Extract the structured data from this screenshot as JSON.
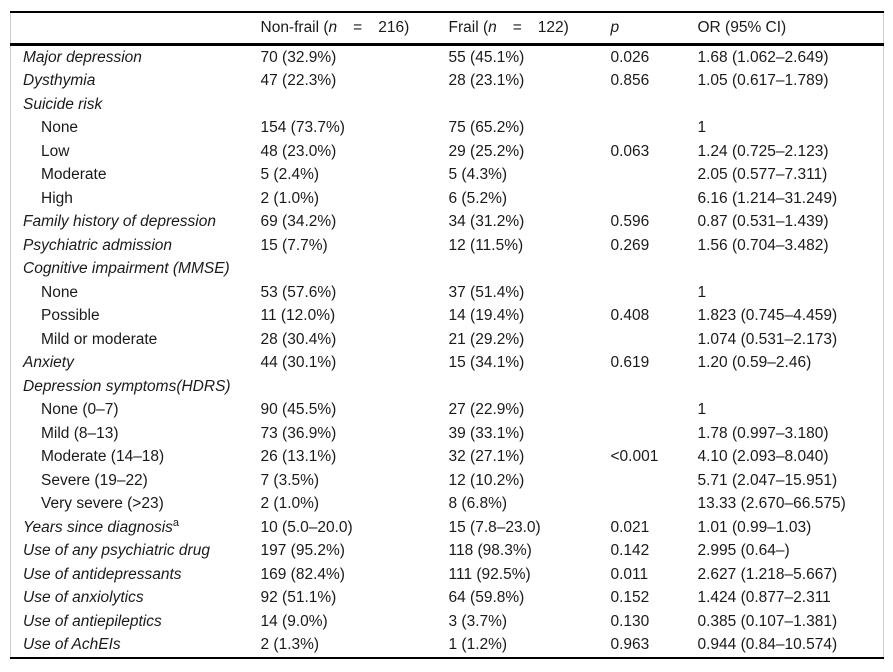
{
  "table": {
    "header": {
      "row_label": "",
      "nonfrail": {
        "pre": "Non-frail (",
        "n": "n",
        "eq": "=",
        "num": "216)"
      },
      "frail": {
        "pre": "Frail (",
        "n": "n",
        "eq": "=",
        "num": "122)"
      },
      "p": "p",
      "or": "OR (95% CI)"
    },
    "rows": [
      {
        "label": "Major depression",
        "italic": true,
        "nonfrail": "70 (32.9%)",
        "frail": "55 (45.1%)",
        "p": "0.026",
        "or": "1.68 (1.062–2.649)"
      },
      {
        "label": "Dysthymia",
        "italic": true,
        "nonfrail": "47 (22.3%)",
        "frail": "28 (23.1%)",
        "p": "0.856",
        "or": "1.05 (0.617–1.789)"
      },
      {
        "label": "Suicide risk",
        "italic": true,
        "nonfrail": "",
        "frail": "",
        "p": "",
        "or": ""
      },
      {
        "label": "None",
        "indent": true,
        "nonfrail": "154 (73.7%)",
        "frail": "75 (65.2%)",
        "p": "",
        "or": "1"
      },
      {
        "label": "Low",
        "indent": true,
        "nonfrail": "48 (23.0%)",
        "frail": "29 (25.2%)",
        "p": "0.063",
        "or": "1.24 (0.725–2.123)"
      },
      {
        "label": "Moderate",
        "indent": true,
        "nonfrail": "5 (2.4%)",
        "frail": "5 (4.3%)",
        "p": "",
        "or": "2.05 (0.577–7.311)"
      },
      {
        "label": "High",
        "indent": true,
        "nonfrail": "2 (1.0%)",
        "frail": "6 (5.2%)",
        "p": "",
        "or": "6.16 (1.214–31.249)"
      },
      {
        "label": "Family history of depression",
        "italic": true,
        "nonfrail": "69 (34.2%)",
        "frail": "34 (31.2%)",
        "p": "0.596",
        "or": "0.87 (0.531–1.439)"
      },
      {
        "label": "Psychiatric admission",
        "italic": true,
        "nonfrail": "15 (7.7%)",
        "frail": "12 (11.5%)",
        "p": "0.269",
        "or": "1.56 (0.704–3.482)"
      },
      {
        "label": "Cognitive impairment (MMSE)",
        "italic": true,
        "nonfrail": "",
        "frail": "",
        "p": "",
        "or": ""
      },
      {
        "label": "None",
        "indent": true,
        "nonfrail": "53 (57.6%)",
        "frail": "37 (51.4%)",
        "p": "",
        "or": "1"
      },
      {
        "label": "Possible",
        "indent": true,
        "nonfrail": "11 (12.0%)",
        "frail": "14 (19.4%)",
        "p": "0.408",
        "or": "1.823 (0.745–4.459)"
      },
      {
        "label": "Mild or moderate",
        "indent": true,
        "nonfrail": "28 (30.4%)",
        "frail": "21 (29.2%)",
        "p": "",
        "or": "1.074 (0.531–2.173)"
      },
      {
        "label": "Anxiety",
        "italic": true,
        "nonfrail": "44 (30.1%)",
        "frail": "15 (34.1%)",
        "p": "0.619",
        "or": "1.20 (0.59–2.46)"
      },
      {
        "label": "Depression symptoms(HDRS)",
        "italic": true,
        "nonfrail": "",
        "frail": "",
        "p": "",
        "or": ""
      },
      {
        "label": "None (0–7)",
        "indent": true,
        "nonfrail": "90 (45.5%)",
        "frail": "27 (22.9%)",
        "p": "",
        "or": "1"
      },
      {
        "label": "Mild (8–13)",
        "indent": true,
        "nonfrail": "73 (36.9%)",
        "frail": "39 (33.1%)",
        "p": "",
        "or": "1.78 (0.997–3.180)"
      },
      {
        "label": "Moderate (14–18)",
        "indent": true,
        "nonfrail": "26 (13.1%)",
        "frail": "32 (27.1%)",
        "p": "<0.001",
        "or": "4.10 (2.093–8.040)"
      },
      {
        "label": "Severe (19–22)",
        "indent": true,
        "nonfrail": "7 (3.5%)",
        "frail": "12 (10.2%)",
        "p": "",
        "or": "5.71 (2.047–15.951)"
      },
      {
        "label": "Very severe (>23)",
        "indent": true,
        "nonfrail": "2 (1.0%)",
        "frail": "8 (6.8%)",
        "p": "",
        "or": "13.33 (2.670–66.575)"
      },
      {
        "label": "Years since diagnosis",
        "italic": true,
        "sup": "a",
        "nonfrail": "10 (5.0–20.0)",
        "frail": "15 (7.8–23.0)",
        "p": "0.021",
        "or": "1.01 (0.99–1.03)"
      },
      {
        "label": "Use of any psychiatric drug",
        "italic": true,
        "nonfrail": "197 (95.2%)",
        "frail": "118 (98.3%)",
        "p": "0.142",
        "or": "2.995 (0.64–)"
      },
      {
        "label": "Use of antidepressants",
        "italic": true,
        "nonfrail": "169 (82.4%)",
        "frail": "111 (92.5%)",
        "p": "0.011",
        "or": "2.627 (1.218–5.667)"
      },
      {
        "label": "Use of anxiolytics",
        "italic": true,
        "nonfrail": "92 (51.1%)",
        "frail": "64 (59.8%)",
        "p": "0.152",
        "or": "1.424 (0.877–2.311"
      },
      {
        "label": "Use of antiepileptics",
        "italic": true,
        "nonfrail": "14 (9.0%)",
        "frail": "3 (3.7%)",
        "p": "0.130",
        "or": "0.385 (0.107–1.381)"
      },
      {
        "label": "Use of AchEIs",
        "italic": true,
        "nonfrail": "2 (1.3%)",
        "frail": "1 (1.2%)",
        "p": "0.963",
        "or": "0.944 (0.84–10.574)"
      }
    ]
  }
}
